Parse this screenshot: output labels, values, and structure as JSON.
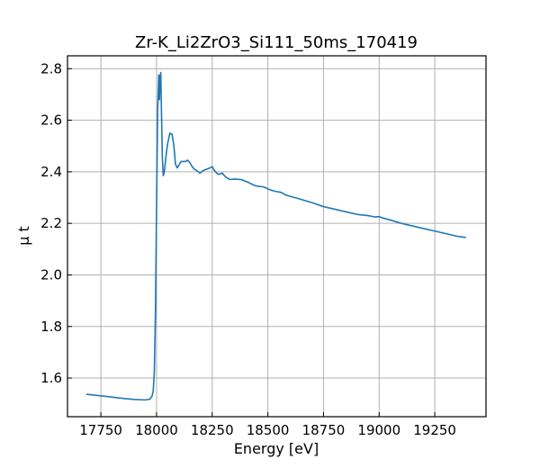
{
  "chart_data": {
    "type": "line",
    "title": "Zr-K_Li2ZrO3_Si111_50ms_170419",
    "xlabel": "Energy [eV]",
    "ylabel": "μ t",
    "xlim": [
      17600,
      19480
    ],
    "ylim": [
      1.45,
      2.85
    ],
    "xticks": [
      17750,
      18000,
      18250,
      18500,
      18750,
      19000,
      19250
    ],
    "yticks": [
      1.6,
      1.8,
      2.0,
      2.2,
      2.4,
      2.6,
      2.8
    ],
    "xtick_labels": [
      "17750",
      "18000",
      "18250",
      "18500",
      "18750",
      "19000",
      "19250"
    ],
    "ytick_labels": [
      "1.6",
      "1.8",
      "2.0",
      "2.2",
      "2.4",
      "2.6",
      "2.8"
    ],
    "grid": true,
    "line_color": "#1f77b4",
    "series": [
      {
        "x": [
          17685,
          17750,
          17800,
          17850,
          17900,
          17950,
          17970,
          17980,
          17985,
          17990,
          17995,
          18000,
          18005,
          18010,
          18013,
          18016,
          18019,
          18022,
          18026,
          18030,
          18035,
          18040,
          18045,
          18050,
          18060,
          18070,
          18078,
          18085,
          18093,
          18100,
          18110,
          18120,
          18130,
          18140,
          18150,
          18160,
          18170,
          18180,
          18195,
          18210,
          18225,
          18240,
          18250,
          18260,
          18270,
          18280,
          18295,
          18310,
          18330,
          18350,
          18380,
          18410,
          18440,
          18460,
          18480,
          18510,
          18530,
          18560,
          18580,
          18600,
          18630,
          18660,
          18700,
          18750,
          18800,
          18850,
          18900,
          18950,
          18980,
          19000,
          19020,
          19050,
          19100,
          19150,
          19200,
          19250,
          19300,
          19350,
          19390
        ],
        "y": [
          1.537,
          1.531,
          1.526,
          1.521,
          1.517,
          1.515,
          1.518,
          1.53,
          1.55,
          1.62,
          1.85,
          2.25,
          2.64,
          2.775,
          2.68,
          2.77,
          2.785,
          2.64,
          2.46,
          2.385,
          2.4,
          2.44,
          2.48,
          2.51,
          2.55,
          2.545,
          2.5,
          2.43,
          2.415,
          2.425,
          2.44,
          2.44,
          2.44,
          2.445,
          2.435,
          2.42,
          2.41,
          2.405,
          2.395,
          2.405,
          2.41,
          2.415,
          2.42,
          2.405,
          2.395,
          2.39,
          2.395,
          2.38,
          2.37,
          2.372,
          2.37,
          2.36,
          2.347,
          2.343,
          2.342,
          2.33,
          2.325,
          2.32,
          2.31,
          2.305,
          2.298,
          2.29,
          2.28,
          2.265,
          2.255,
          2.245,
          2.235,
          2.23,
          2.225,
          2.226,
          2.22,
          2.213,
          2.2,
          2.19,
          2.18,
          2.17,
          2.16,
          2.15,
          2.145
        ]
      }
    ]
  }
}
